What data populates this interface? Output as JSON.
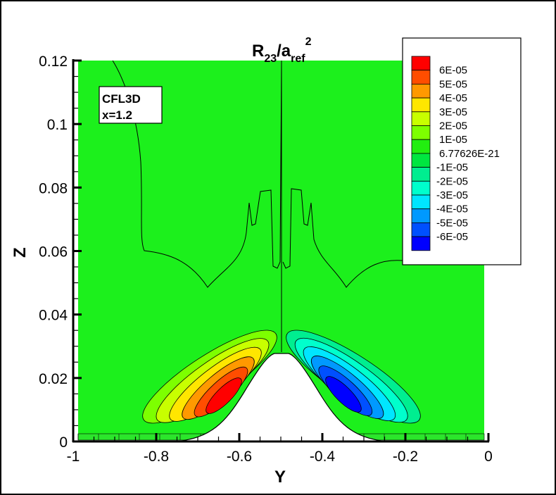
{
  "chart_data": {
    "type": "contour",
    "title": "R23/aref2",
    "title_parts": {
      "base1": "R",
      "sub1": "23",
      "slash": "/a",
      "sub2": "ref",
      "sup": "2"
    },
    "xlabel": "Y",
    "ylabel": "Z",
    "xlim": [
      -1,
      0
    ],
    "ylim": [
      0,
      0.12
    ],
    "xticks": [
      "-1",
      "-0.8",
      "-0.6",
      "-0.4",
      "-0.2",
      "0"
    ],
    "xtick_values": [
      -1,
      -0.8,
      -0.6,
      -0.4,
      -0.2,
      0
    ],
    "yticks": [
      "0",
      "0.02",
      "0.04",
      "0.06",
      "0.08",
      "0.1",
      "0.12"
    ],
    "ytick_values": [
      0,
      0.02,
      0.04,
      0.06,
      0.08,
      0.1,
      0.12
    ],
    "annotation": [
      "CFL3D",
      "x=1.2"
    ],
    "legend": {
      "placement": "top-right",
      "levels": [
        "6E-05",
        "5E-05",
        "4E-05",
        "3E-05",
        "2E-05",
        "1E-05",
        "6.77626E-21",
        "-1E-05",
        "-2E-05",
        "-3E-05",
        "-4E-05",
        "-5E-05",
        "-6E-05"
      ],
      "colors": [
        "#ff0000",
        "#ff4d00",
        "#ff9900",
        "#ffe600",
        "#c8ff00",
        "#7dff00",
        "#22ee10",
        "#00e640",
        "#00ee90",
        "#00ffcc",
        "#00e6ff",
        "#0099ff",
        "#0050ff",
        "#0000ff"
      ]
    },
    "background_color": "#1cf01c",
    "features": {
      "positive_lobe_center": {
        "Y": -0.65,
        "Z": 0.014
      },
      "negative_lobe_center": {
        "Y": -0.36,
        "Z": 0.015
      },
      "bump_peak": {
        "Y": -0.5,
        "Z": 0.028
      }
    }
  }
}
